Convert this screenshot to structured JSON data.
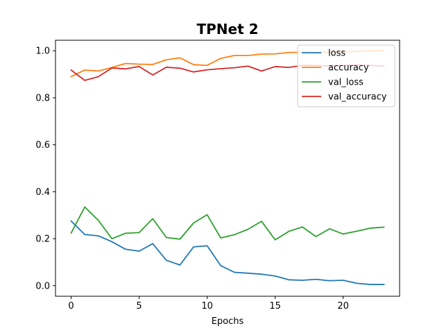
{
  "chart_data": {
    "type": "line",
    "title": "TPNet 2",
    "xlabel": "Epochs",
    "ylabel": "",
    "xlim": [
      -1.15,
      24.15
    ],
    "ylim": [
      -0.045,
      1.045
    ],
    "xticks": [
      0,
      5,
      10,
      15,
      20
    ],
    "yticks": [
      0.0,
      0.2,
      0.4,
      0.6,
      0.8,
      1.0
    ],
    "xtick_labels": [
      "0",
      "5",
      "10",
      "15",
      "20"
    ],
    "ytick_labels": [
      "0.0",
      "0.2",
      "0.4",
      "0.6",
      "0.8",
      "1.0"
    ],
    "grid": false,
    "legend_position": "top-right",
    "x": [
      0,
      1,
      2,
      3,
      4,
      5,
      6,
      7,
      8,
      9,
      10,
      11,
      12,
      13,
      14,
      15,
      16,
      17,
      18,
      19,
      20,
      21,
      22,
      23
    ],
    "series": [
      {
        "name": "loss",
        "color": "#1f77b4",
        "values": [
          0.275,
          0.218,
          0.212,
          0.187,
          0.155,
          0.147,
          0.179,
          0.108,
          0.088,
          0.165,
          0.17,
          0.085,
          0.057,
          0.053,
          0.049,
          0.041,
          0.025,
          0.023,
          0.027,
          0.021,
          0.023,
          0.01,
          0.005,
          0.005
        ]
      },
      {
        "name": "accuracy",
        "color": "#ff7f0e",
        "values": [
          0.89,
          0.918,
          0.914,
          0.929,
          0.946,
          0.943,
          0.942,
          0.962,
          0.97,
          0.941,
          0.938,
          0.968,
          0.98,
          0.98,
          0.986,
          0.987,
          0.993,
          0.994,
          0.993,
          0.995,
          0.994,
          0.998,
          1.0,
          1.0
        ]
      },
      {
        "name": "val_loss",
        "color": "#2ca02c",
        "values": [
          0.224,
          0.335,
          0.278,
          0.2,
          0.223,
          0.226,
          0.285,
          0.205,
          0.198,
          0.267,
          0.302,
          0.203,
          0.217,
          0.24,
          0.274,
          0.195,
          0.231,
          0.25,
          0.209,
          0.242,
          0.22,
          0.232,
          0.245,
          0.249
        ]
      },
      {
        "name": "val_accuracy",
        "color": "#d62728",
        "values": [
          0.918,
          0.874,
          0.89,
          0.927,
          0.923,
          0.933,
          0.897,
          0.93,
          0.926,
          0.91,
          0.919,
          0.924,
          0.928,
          0.935,
          0.914,
          0.933,
          0.929,
          0.938,
          0.938,
          0.935,
          0.938,
          0.94,
          0.938,
          0.935
        ]
      }
    ]
  }
}
